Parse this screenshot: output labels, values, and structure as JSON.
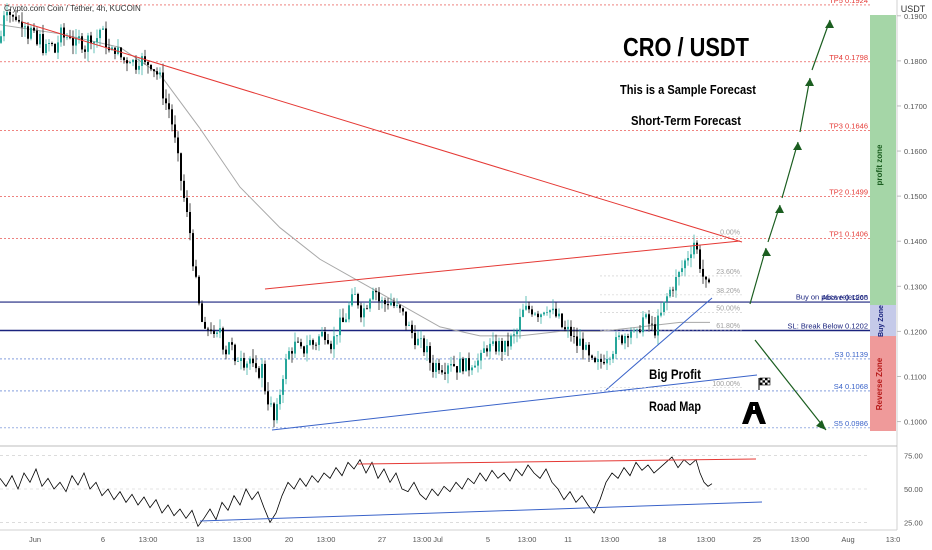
{
  "header": {
    "symbol_line": "Crypto.com Coin / Tether, 4h, KUCOIN",
    "currency": "USDT"
  },
  "annotations": {
    "title": "CRO / USDT",
    "subtitle1": "This is a Sample Forecast",
    "subtitle2": "Short-Term Forecast",
    "roadmap1": "Big Profit",
    "roadmap2": "Road Map",
    "profit_zone": "profit zone",
    "buy_zone": "Buy Zone",
    "reverse_zone": "Reverse Zone"
  },
  "colors": {
    "up": "#26a69a",
    "down": "#000000",
    "resistance": "#e53935",
    "support": "#3a63c9",
    "forecast": "#1b5e20",
    "profit_zone": "#a5d6a7",
    "buy_zone": "#c5cae9",
    "reverse_zone": "#ef9a9a"
  },
  "chart_data": [
    {
      "type": "candlestick",
      "title": "Crypto.com Coin / Tether, 4h, KUCOIN",
      "y_unit": "USDT",
      "ylim": [
        0.0968,
        0.1935
      ],
      "y_ticks": [
        "0.1900",
        "0.1800",
        "0.1700",
        "0.1600",
        "0.1500",
        "0.1400",
        "0.1300",
        "0.1200",
        "0.1100",
        "0.1000"
      ],
      "x_ticks": [
        "Jun",
        "6",
        "13:00",
        "13",
        "13:00",
        "20",
        "13:00",
        "27",
        "13:00",
        "Jul",
        "5",
        "13:00",
        "11",
        "13:00",
        "18",
        "13:00",
        "25",
        "13:00",
        "Aug",
        "13:0"
      ],
      "price_path": [
        [
          0,
          0.184
        ],
        [
          2,
          0.187
        ],
        [
          5,
          0.193
        ],
        [
          8,
          0.192
        ],
        [
          12,
          0.189
        ],
        [
          16,
          0.19
        ],
        [
          20,
          0.188
        ],
        [
          24,
          0.19
        ],
        [
          28,
          0.186
        ],
        [
          32,
          0.187
        ],
        [
          36,
          0.183
        ],
        [
          40,
          0.185
        ],
        [
          45,
          0.182
        ],
        [
          50,
          0.184
        ],
        [
          55,
          0.182
        ],
        [
          60,
          0.186
        ],
        [
          65,
          0.185
        ],
        [
          70,
          0.186
        ],
        [
          75,
          0.183
        ],
        [
          80,
          0.185
        ],
        [
          85,
          0.183
        ],
        [
          90,
          0.186
        ],
        [
          95,
          0.184
        ],
        [
          100,
          0.187
        ],
        [
          105,
          0.185
        ],
        [
          110,
          0.181
        ],
        [
          115,
          0.183
        ],
        [
          120,
          0.181
        ],
        [
          125,
          0.18
        ],
        [
          130,
          0.181
        ],
        [
          135,
          0.179
        ],
        [
          140,
          0.181
        ],
        [
          145,
          0.179
        ],
        [
          150,
          0.18
        ],
        [
          155,
          0.178
        ],
        [
          160,
          0.176
        ],
        [
          165,
          0.171
        ],
        [
          170,
          0.169
        ],
        [
          175,
          0.162
        ],
        [
          180,
          0.155
        ],
        [
          185,
          0.148
        ],
        [
          190,
          0.142
        ],
        [
          195,
          0.132
        ],
        [
          200,
          0.124
        ],
        [
          205,
          0.119
        ],
        [
          210,
          0.122
        ],
        [
          215,
          0.117
        ],
        [
          220,
          0.121
        ],
        [
          225,
          0.115
        ],
        [
          230,
          0.119
        ],
        [
          235,
          0.112
        ],
        [
          240,
          0.116
        ],
        [
          245,
          0.113
        ],
        [
          250,
          0.114
        ],
        [
          255,
          0.11
        ],
        [
          262,
          0.112
        ],
        [
          266,
          0.106
        ],
        [
          270,
          0.104
        ],
        [
          274,
          0.1
        ],
        [
          278,
          0.103
        ],
        [
          282,
          0.11
        ],
        [
          286,
          0.113
        ],
        [
          290,
          0.116
        ],
        [
          296,
          0.117
        ],
        [
          302,
          0.115
        ],
        [
          308,
          0.118
        ],
        [
          314,
          0.117
        ],
        [
          320,
          0.119
        ],
        [
          326,
          0.12
        ],
        [
          332,
          0.117
        ],
        [
          338,
          0.121
        ],
        [
          344,
          0.122
        ],
        [
          350,
          0.126
        ],
        [
          356,
          0.128
        ],
        [
          362,
          0.124
        ],
        [
          368,
          0.127
        ],
        [
          374,
          0.131
        ],
        [
          378,
          0.127
        ],
        [
          384,
          0.126
        ],
        [
          390,
          0.127
        ],
        [
          396,
          0.125
        ],
        [
          402,
          0.124
        ],
        [
          408,
          0.121
        ],
        [
          414,
          0.119
        ],
        [
          420,
          0.117
        ],
        [
          426,
          0.116
        ],
        [
          432,
          0.112
        ],
        [
          438,
          0.113
        ],
        [
          444,
          0.112
        ],
        [
          450,
          0.114
        ],
        [
          456,
          0.112
        ],
        [
          462,
          0.113
        ],
        [
          468,
          0.112
        ],
        [
          474,
          0.114
        ],
        [
          480,
          0.113
        ],
        [
          486,
          0.117
        ],
        [
          492,
          0.116
        ],
        [
          498,
          0.117
        ],
        [
          504,
          0.116
        ],
        [
          510,
          0.118
        ],
        [
          516,
          0.119
        ],
        [
          522,
          0.124
        ],
        [
          528,
          0.125
        ],
        [
          534,
          0.125
        ],
        [
          540,
          0.124
        ],
        [
          546,
          0.126
        ],
        [
          552,
          0.124
        ],
        [
          558,
          0.123
        ],
        [
          564,
          0.12
        ],
        [
          570,
          0.12
        ],
        [
          576,
          0.117
        ],
        [
          582,
          0.118
        ],
        [
          588,
          0.114
        ],
        [
          594,
          0.112
        ],
        [
          600,
          0.113
        ],
        [
          606,
          0.115
        ],
        [
          612,
          0.116
        ],
        [
          618,
          0.118
        ],
        [
          624,
          0.119
        ],
        [
          630,
          0.121
        ],
        [
          636,
          0.118
        ],
        [
          642,
          0.123
        ],
        [
          648,
          0.122
        ],
        [
          654,
          0.12
        ],
        [
          660,
          0.123
        ],
        [
          666,
          0.127
        ],
        [
          672,
          0.13
        ],
        [
          678,
          0.132
        ],
        [
          684,
          0.135
        ],
        [
          690,
          0.138
        ],
        [
          694,
          0.14
        ],
        [
          698,
          0.137
        ],
        [
          702,
          0.133
        ],
        [
          706,
          0.13
        ],
        [
          710,
          0.129
        ]
      ],
      "moving_average": [
        [
          0,
          0.188
        ],
        [
          60,
          0.186
        ],
        [
          120,
          0.183
        ],
        [
          160,
          0.177
        ],
        [
          200,
          0.165
        ],
        [
          240,
          0.152
        ],
        [
          280,
          0.143
        ],
        [
          320,
          0.136
        ],
        [
          360,
          0.131
        ],
        [
          400,
          0.126
        ],
        [
          440,
          0.121
        ],
        [
          480,
          0.119
        ],
        [
          520,
          0.119
        ],
        [
          560,
          0.12
        ],
        [
          600,
          0.12
        ],
        [
          640,
          0.121
        ],
        [
          680,
          0.122
        ],
        [
          710,
          0.122
        ]
      ],
      "levels": [
        {
          "label": "TP5 0.1924",
          "value": 0.1924,
          "color": "#e53935"
        },
        {
          "label": "TP4 0.1798",
          "value": 0.1798,
          "color": "#e53935"
        },
        {
          "label": "TP3 0.1646",
          "value": 0.1646,
          "color": "#e53935"
        },
        {
          "label": "TP2 0.1499",
          "value": 0.1499,
          "color": "#e53935"
        },
        {
          "label": "TP1 0.1406",
          "value": 0.1406,
          "color": "#e53935"
        },
        {
          "label": "Buy on price rejection",
          "value": 0.1282,
          "color": "#1a237e"
        },
        {
          "label": "Above 0.1265",
          "value": 0.1265,
          "color": "#1a237e"
        },
        {
          "label": "SL: Break Below 0.1202",
          "value": 0.1202,
          "color": "#1a237e"
        },
        {
          "label": "S3 0.1139",
          "value": 0.1139,
          "color": "#3a63c9"
        },
        {
          "label": "S4 0.1068",
          "value": 0.1068,
          "color": "#3a63c9"
        },
        {
          "label": "S5 0.0986",
          "value": 0.0986,
          "color": "#3a63c9"
        }
      ],
      "fibonacci": [
        {
          "label": "0.00%",
          "value": 0.1411
        },
        {
          "label": "23.60%",
          "value": 0.1323
        },
        {
          "label": "38.20%",
          "value": 0.1281
        },
        {
          "label": "50.00%",
          "value": 0.1242
        },
        {
          "label": "61.80%",
          "value": 0.1203
        },
        {
          "label": "100.00%",
          "value": 0.1075
        }
      ]
    },
    {
      "type": "line",
      "title": "",
      "ylim": [
        20,
        80
      ],
      "y_ticks": [
        "75.00",
        "50.00",
        "25.00"
      ],
      "rsi_path": [
        [
          0,
          58
        ],
        [
          6,
          52
        ],
        [
          12,
          60
        ],
        [
          18,
          50
        ],
        [
          24,
          62
        ],
        [
          30,
          55
        ],
        [
          36,
          65
        ],
        [
          42,
          52
        ],
        [
          48,
          58
        ],
        [
          54,
          50
        ],
        [
          60,
          55
        ],
        [
          66,
          48
        ],
        [
          72,
          60
        ],
        [
          78,
          53
        ],
        [
          84,
          62
        ],
        [
          90,
          50
        ],
        [
          96,
          55
        ],
        [
          102,
          45
        ],
        [
          108,
          50
        ],
        [
          114,
          42
        ],
        [
          120,
          48
        ],
        [
          126,
          40
        ],
        [
          132,
          46
        ],
        [
          138,
          38
        ],
        [
          144,
          44
        ],
        [
          150,
          36
        ],
        [
          156,
          42
        ],
        [
          162,
          32
        ],
        [
          168,
          38
        ],
        [
          174,
          30
        ],
        [
          180,
          35
        ],
        [
          186,
          28
        ],
        [
          192,
          34
        ],
        [
          198,
          22
        ],
        [
          204,
          28
        ],
        [
          210,
          35
        ],
        [
          216,
          27
        ],
        [
          222,
          40
        ],
        [
          228,
          34
        ],
        [
          234,
          45
        ],
        [
          240,
          38
        ],
        [
          246,
          50
        ],
        [
          252,
          42
        ],
        [
          258,
          48
        ],
        [
          264,
          36
        ],
        [
          270,
          25
        ],
        [
          276,
          32
        ],
        [
          282,
          45
        ],
        [
          288,
          55
        ],
        [
          294,
          50
        ],
        [
          300,
          58
        ],
        [
          306,
          52
        ],
        [
          312,
          60
        ],
        [
          318,
          55
        ],
        [
          324,
          62
        ],
        [
          330,
          58
        ],
        [
          336,
          66
        ],
        [
          342,
          60
        ],
        [
          348,
          70
        ],
        [
          354,
          65
        ],
        [
          360,
          72
        ],
        [
          366,
          62
        ],
        [
          372,
          70
        ],
        [
          378,
          58
        ],
        [
          384,
          65
        ],
        [
          390,
          55
        ],
        [
          396,
          62
        ],
        [
          402,
          50
        ],
        [
          408,
          48
        ],
        [
          414,
          55
        ],
        [
          420,
          46
        ],
        [
          426,
          42
        ],
        [
          432,
          50
        ],
        [
          438,
          45
        ],
        [
          444,
          52
        ],
        [
          450,
          48
        ],
        [
          456,
          55
        ],
        [
          462,
          50
        ],
        [
          468,
          58
        ],
        [
          474,
          54
        ],
        [
          480,
          62
        ],
        [
          486,
          56
        ],
        [
          492,
          64
        ],
        [
          498,
          58
        ],
        [
          504,
          62
        ],
        [
          510,
          56
        ],
        [
          516,
          65
        ],
        [
          522,
          60
        ],
        [
          528,
          68
        ],
        [
          534,
          62
        ],
        [
          540,
          58
        ],
        [
          546,
          65
        ],
        [
          552,
          55
        ],
        [
          558,
          50
        ],
        [
          564,
          42
        ],
        [
          570,
          48
        ],
        [
          576,
          40
        ],
        [
          582,
          45
        ],
        [
          588,
          38
        ],
        [
          594,
          32
        ],
        [
          600,
          42
        ],
        [
          606,
          55
        ],
        [
          612,
          62
        ],
        [
          618,
          58
        ],
        [
          624,
          66
        ],
        [
          630,
          60
        ],
        [
          636,
          70
        ],
        [
          642,
          64
        ],
        [
          648,
          68
        ],
        [
          654,
          62
        ],
        [
          660,
          66
        ],
        [
          666,
          70
        ],
        [
          672,
          74
        ],
        [
          678,
          66
        ],
        [
          684,
          72
        ],
        [
          690,
          68
        ],
        [
          696,
          72
        ],
        [
          700,
          62
        ],
        [
          704,
          55
        ],
        [
          708,
          52
        ],
        [
          712,
          54
        ]
      ],
      "bands": [
        75,
        50,
        25
      ]
    }
  ]
}
